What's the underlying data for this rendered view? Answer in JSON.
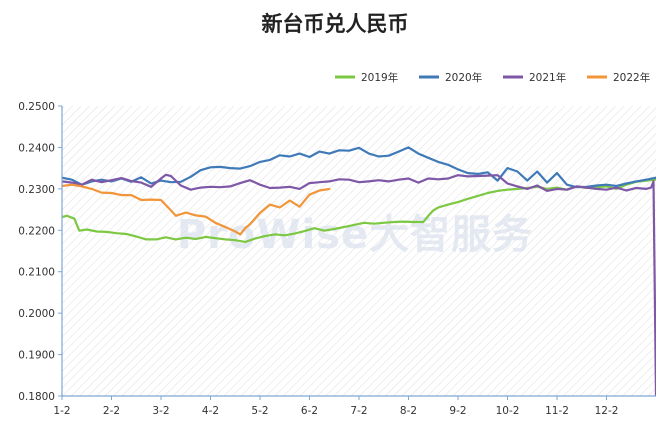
{
  "page": {
    "watermark_text": "ProWise大智服务"
  },
  "chart_data": {
    "type": "line",
    "title": "新台币兑人民币",
    "xlabel": "",
    "ylabel": "",
    "x_tick_labels": [
      "1-2",
      "2-2",
      "3-2",
      "4-2",
      "5-2",
      "6-2",
      "7-2",
      "8-2",
      "9-2",
      "10-2",
      "11-2",
      "12-2"
    ],
    "y_tick_labels": [
      "0.1800",
      "0.1900",
      "0.2000",
      "0.2100",
      "0.2200",
      "0.2300",
      "0.2400",
      "0.2500"
    ],
    "ylim": [
      0.18,
      0.25
    ],
    "x_unit": "month (1.0 = Jan 2)",
    "xlim": [
      1.0,
      13.0
    ],
    "grid": "hatched plot background",
    "legend_position": "top-right",
    "series": [
      {
        "name": "2019年",
        "color": "#7dc843",
        "points": [
          [
            1.0,
            0.2232
          ],
          [
            1.1,
            0.2235
          ],
          [
            1.25,
            0.2228
          ],
          [
            1.35,
            0.2199
          ],
          [
            1.5,
            0.2202
          ],
          [
            1.7,
            0.2197
          ],
          [
            1.9,
            0.2196
          ],
          [
            2.1,
            0.2193
          ],
          [
            2.3,
            0.2191
          ],
          [
            2.5,
            0.2185
          ],
          [
            2.7,
            0.2178
          ],
          [
            2.9,
            0.2178
          ],
          [
            3.1,
            0.2183
          ],
          [
            3.3,
            0.2178
          ],
          [
            3.5,
            0.2182
          ],
          [
            3.7,
            0.2179
          ],
          [
            3.9,
            0.2184
          ],
          [
            4.1,
            0.2181
          ],
          [
            4.3,
            0.2178
          ],
          [
            4.5,
            0.2176
          ],
          [
            4.7,
            0.2172
          ],
          [
            4.9,
            0.218
          ],
          [
            5.1,
            0.2186
          ],
          [
            5.3,
            0.219
          ],
          [
            5.5,
            0.2188
          ],
          [
            5.7,
            0.2192
          ],
          [
            5.9,
            0.2198
          ],
          [
            6.1,
            0.2205
          ],
          [
            6.3,
            0.2199
          ],
          [
            6.5,
            0.2203
          ],
          [
            6.7,
            0.2208
          ],
          [
            6.9,
            0.2213
          ],
          [
            7.1,
            0.2218
          ],
          [
            7.3,
            0.2216
          ],
          [
            7.5,
            0.2218
          ],
          [
            7.7,
            0.222
          ],
          [
            7.9,
            0.2221
          ],
          [
            8.1,
            0.222
          ],
          [
            8.3,
            0.222
          ],
          [
            8.4,
            0.2235
          ],
          [
            8.5,
            0.2248
          ],
          [
            8.6,
            0.2255
          ],
          [
            8.8,
            0.2262
          ],
          [
            9.0,
            0.2268
          ],
          [
            9.2,
            0.2276
          ],
          [
            9.4,
            0.2283
          ],
          [
            9.6,
            0.229
          ],
          [
            9.8,
            0.2295
          ],
          [
            10.0,
            0.2298
          ],
          [
            10.2,
            0.23
          ],
          [
            10.4,
            0.2302
          ],
          [
            10.6,
            0.2305
          ],
          [
            10.8,
            0.23
          ],
          [
            11.0,
            0.2303
          ],
          [
            11.2,
            0.2298
          ],
          [
            11.4,
            0.2306
          ],
          [
            11.6,
            0.2302
          ],
          [
            11.8,
            0.2304
          ],
          [
            12.0,
            0.2306
          ],
          [
            12.2,
            0.23
          ],
          [
            12.4,
            0.231
          ],
          [
            12.6,
            0.2317
          ],
          [
            12.8,
            0.232
          ],
          [
            13.0,
            0.2322
          ]
        ]
      },
      {
        "name": "2020年",
        "color": "#3f7ab8",
        "points": [
          [
            1.0,
            0.2327
          ],
          [
            1.2,
            0.2322
          ],
          [
            1.4,
            0.231
          ],
          [
            1.6,
            0.2318
          ],
          [
            1.8,
            0.2322
          ],
          [
            2.0,
            0.2318
          ],
          [
            2.2,
            0.2325
          ],
          [
            2.4,
            0.2317
          ],
          [
            2.6,
            0.2328
          ],
          [
            2.8,
            0.2313
          ],
          [
            3.0,
            0.232
          ],
          [
            3.2,
            0.2316
          ],
          [
            3.4,
            0.2317
          ],
          [
            3.6,
            0.2329
          ],
          [
            3.8,
            0.2345
          ],
          [
            4.0,
            0.2352
          ],
          [
            4.2,
            0.2353
          ],
          [
            4.4,
            0.235
          ],
          [
            4.6,
            0.2349
          ],
          [
            4.8,
            0.2355
          ],
          [
            5.0,
            0.2365
          ],
          [
            5.2,
            0.237
          ],
          [
            5.4,
            0.2381
          ],
          [
            5.6,
            0.2378
          ],
          [
            5.8,
            0.2385
          ],
          [
            6.0,
            0.2377
          ],
          [
            6.2,
            0.239
          ],
          [
            6.4,
            0.2385
          ],
          [
            6.6,
            0.2393
          ],
          [
            6.8,
            0.2392
          ],
          [
            7.0,
            0.2399
          ],
          [
            7.2,
            0.2385
          ],
          [
            7.4,
            0.2378
          ],
          [
            7.6,
            0.238
          ],
          [
            7.8,
            0.239
          ],
          [
            8.0,
            0.24
          ],
          [
            8.2,
            0.2385
          ],
          [
            8.4,
            0.2375
          ],
          [
            8.6,
            0.2365
          ],
          [
            8.8,
            0.2358
          ],
          [
            9.0,
            0.2347
          ],
          [
            9.2,
            0.2338
          ],
          [
            9.4,
            0.2336
          ],
          [
            9.6,
            0.234
          ],
          [
            9.8,
            0.232
          ],
          [
            10.0,
            0.235
          ],
          [
            10.2,
            0.2342
          ],
          [
            10.4,
            0.232
          ],
          [
            10.6,
            0.2342
          ],
          [
            10.8,
            0.2315
          ],
          [
            11.0,
            0.2338
          ],
          [
            11.2,
            0.231
          ],
          [
            11.4,
            0.2304
          ],
          [
            11.6,
            0.2305
          ],
          [
            11.8,
            0.2308
          ],
          [
            12.0,
            0.231
          ],
          [
            12.2,
            0.2307
          ],
          [
            12.4,
            0.2313
          ],
          [
            12.6,
            0.2318
          ],
          [
            12.8,
            0.2322
          ],
          [
            13.0,
            0.2327
          ]
        ]
      },
      {
        "name": "2021年",
        "color": "#7e57a7",
        "points": [
          [
            1.0,
            0.2318
          ],
          [
            1.2,
            0.2315
          ],
          [
            1.4,
            0.231
          ],
          [
            1.6,
            0.2322
          ],
          [
            1.8,
            0.2316
          ],
          [
            2.0,
            0.2321
          ],
          [
            2.2,
            0.2326
          ],
          [
            2.4,
            0.2319
          ],
          [
            2.6,
            0.2315
          ],
          [
            2.8,
            0.2305
          ],
          [
            3.0,
            0.2325
          ],
          [
            3.1,
            0.2334
          ],
          [
            3.2,
            0.2331
          ],
          [
            3.4,
            0.2308
          ],
          [
            3.6,
            0.2298
          ],
          [
            3.8,
            0.2303
          ],
          [
            4.0,
            0.2305
          ],
          [
            4.2,
            0.2304
          ],
          [
            4.4,
            0.2306
          ],
          [
            4.6,
            0.2314
          ],
          [
            4.8,
            0.2321
          ],
          [
            5.0,
            0.231
          ],
          [
            5.2,
            0.2302
          ],
          [
            5.4,
            0.2303
          ],
          [
            5.6,
            0.2305
          ],
          [
            5.8,
            0.23
          ],
          [
            6.0,
            0.2314
          ],
          [
            6.2,
            0.2316
          ],
          [
            6.4,
            0.2318
          ],
          [
            6.6,
            0.2323
          ],
          [
            6.8,
            0.2322
          ],
          [
            7.0,
            0.2316
          ],
          [
            7.2,
            0.2318
          ],
          [
            7.4,
            0.2321
          ],
          [
            7.6,
            0.2318
          ],
          [
            7.8,
            0.2322
          ],
          [
            8.0,
            0.2325
          ],
          [
            8.2,
            0.2315
          ],
          [
            8.4,
            0.2325
          ],
          [
            8.6,
            0.2323
          ],
          [
            8.8,
            0.2325
          ],
          [
            9.0,
            0.2333
          ],
          [
            9.2,
            0.233
          ],
          [
            9.4,
            0.2331
          ],
          [
            9.6,
            0.2332
          ],
          [
            9.8,
            0.2333
          ],
          [
            10.0,
            0.2313
          ],
          [
            10.2,
            0.2306
          ],
          [
            10.4,
            0.23
          ],
          [
            10.6,
            0.2308
          ],
          [
            10.8,
            0.2295
          ],
          [
            11.0,
            0.23
          ],
          [
            11.2,
            0.2298
          ],
          [
            11.4,
            0.2306
          ],
          [
            11.6,
            0.2303
          ],
          [
            11.8,
            0.23
          ],
          [
            12.0,
            0.2298
          ],
          [
            12.2,
            0.2303
          ],
          [
            12.4,
            0.2296
          ],
          [
            12.6,
            0.2302
          ],
          [
            12.8,
            0.23
          ],
          [
            12.9,
            0.2303
          ],
          [
            12.95,
            0.2318
          ],
          [
            13.0,
            0.18
          ]
        ]
      },
      {
        "name": "2022年",
        "color": "#f29438",
        "points": [
          [
            1.0,
            0.2307
          ],
          [
            1.2,
            0.231
          ],
          [
            1.4,
            0.2306
          ],
          [
            1.6,
            0.23
          ],
          [
            1.8,
            0.2291
          ],
          [
            2.0,
            0.229
          ],
          [
            2.2,
            0.2285
          ],
          [
            2.4,
            0.2285
          ],
          [
            2.6,
            0.2273
          ],
          [
            2.8,
            0.2274
          ],
          [
            3.0,
            0.2273
          ],
          [
            3.2,
            0.2248
          ],
          [
            3.3,
            0.2235
          ],
          [
            3.5,
            0.2243
          ],
          [
            3.7,
            0.2236
          ],
          [
            3.9,
            0.2233
          ],
          [
            4.1,
            0.2218
          ],
          [
            4.3,
            0.2208
          ],
          [
            4.5,
            0.2197
          ],
          [
            4.6,
            0.219
          ],
          [
            4.7,
            0.2205
          ],
          [
            4.8,
            0.2215
          ],
          [
            5.0,
            0.2242
          ],
          [
            5.2,
            0.2262
          ],
          [
            5.4,
            0.2255
          ],
          [
            5.6,
            0.2272
          ],
          [
            5.8,
            0.2257
          ],
          [
            6.0,
            0.2286
          ],
          [
            6.2,
            0.2296
          ],
          [
            6.4,
            0.23
          ]
        ]
      }
    ]
  }
}
